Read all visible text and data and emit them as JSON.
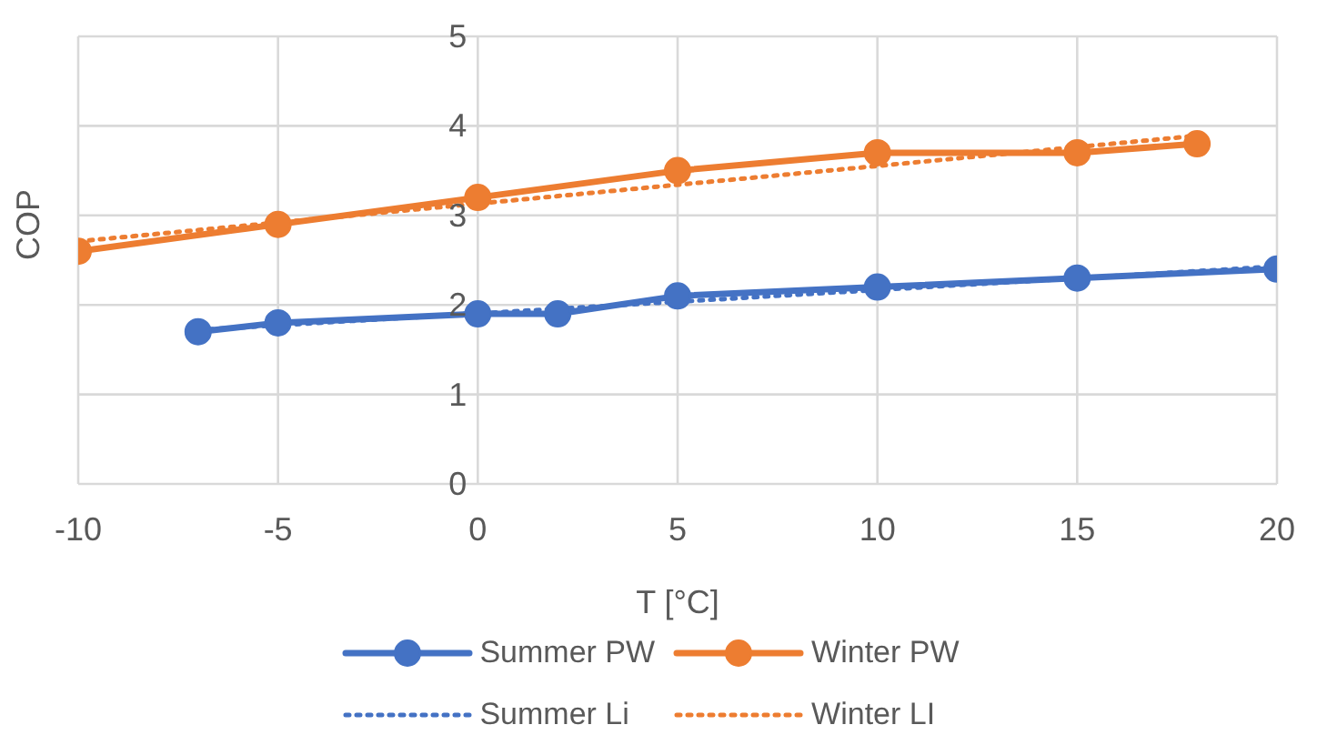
{
  "chart_data": {
    "type": "line",
    "xlabel": "T [°C]",
    "ylabel": "COP",
    "xlim": [
      -10,
      20
    ],
    "xticks": [
      -10,
      -5,
      0,
      5,
      10,
      15,
      20
    ],
    "ylim": [
      0,
      5
    ],
    "yticks": [
      0,
      1,
      2,
      3,
      4,
      5
    ],
    "grid": true,
    "legend": "bottom",
    "series": [
      {
        "name": "Summer PW",
        "color": "#4472c4",
        "marker": "circle",
        "line_style": "solid",
        "x": [
          -7,
          -5,
          0,
          2,
          5,
          10,
          15,
          20
        ],
        "values": [
          1.7,
          1.8,
          1.9,
          1.9,
          2.1,
          2.2,
          2.3,
          2.4
        ]
      },
      {
        "name": "Winter PW",
        "color": "#ed7d31",
        "marker": "circle",
        "line_style": "solid",
        "x": [
          -10,
          -5,
          0,
          5,
          10,
          15,
          18
        ],
        "values": [
          2.6,
          2.9,
          3.2,
          3.5,
          3.7,
          3.7,
          3.8
        ]
      },
      {
        "name": "Summer Li",
        "color": "#4472c4",
        "marker": "none",
        "line_style": "dotted",
        "x": [
          -7,
          20
        ],
        "values": [
          1.72,
          2.43
        ]
      },
      {
        "name": "Winter LI",
        "color": "#ed7d31",
        "marker": "none",
        "line_style": "dotted",
        "x": [
          -10,
          18
        ],
        "values": [
          2.71,
          3.89
        ]
      }
    ]
  }
}
